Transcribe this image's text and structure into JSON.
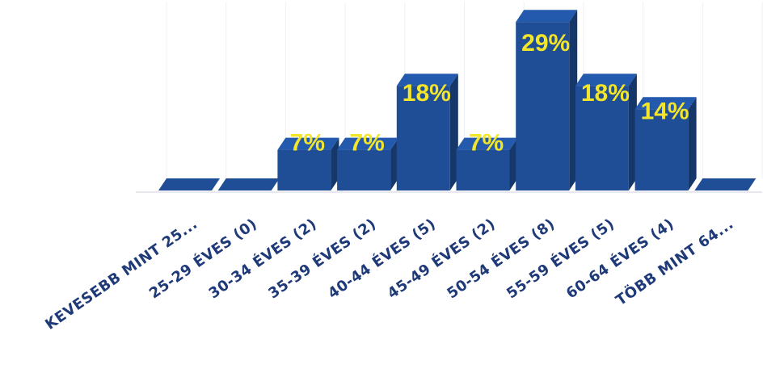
{
  "chart_data": {
    "type": "bar",
    "style": "3d",
    "title": "",
    "xlabel": "",
    "ylabel": "",
    "ylim": [
      0,
      29
    ],
    "grid": true,
    "bar_color": "#1f4e96",
    "label_color": "#f2e52a",
    "categories": [
      "KEVESEBB MINT 25...",
      "25-29 ÉVES (0)",
      "30-34 ÉVES (2)",
      "35-39 ÉVES (2)",
      "40-44 ÉVES (5)",
      "45-49 ÉVES (2)",
      "50-54 ÉVES (8)",
      "55-59 ÉVES (5)",
      "60-64 ÉVES (4)",
      "TÖBB MINT 64..."
    ],
    "values": [
      0,
      0,
      7,
      7,
      18,
      7,
      29,
      18,
      14,
      0
    ],
    "value_labels": [
      "",
      "",
      "7%",
      "7%",
      "18%",
      "7%",
      "29%",
      "18%",
      "14%",
      ""
    ]
  }
}
